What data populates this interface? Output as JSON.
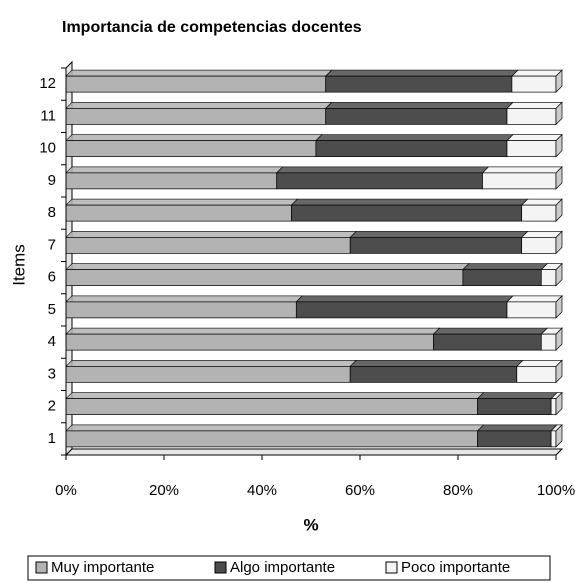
{
  "chart_data": {
    "type": "stacked-barh",
    "title": "Importancia de competencias docentes",
    "categories": [
      "1",
      "2",
      "3",
      "4",
      "5",
      "6",
      "7",
      "8",
      "9",
      "10",
      "11",
      "12"
    ],
    "series": [
      {
        "name": "Muy importante",
        "color": "#b3b3b3",
        "values": [
          84,
          84,
          58,
          75,
          47,
          81,
          58,
          46,
          43,
          51,
          53,
          53
        ]
      },
      {
        "name": "Algo importante",
        "color": "#4d4d4d",
        "values": [
          15,
          15,
          34,
          22,
          43,
          16,
          35,
          47,
          42,
          39,
          37,
          38
        ]
      },
      {
        "name": "Poco importante",
        "color": "#f4f4f4",
        "values": [
          1,
          1,
          8,
          3,
          10,
          3,
          7,
          7,
          15,
          10,
          10,
          9
        ]
      }
    ],
    "xlabel": "%",
    "ylabel": "Items",
    "xlim": [
      0,
      100
    ],
    "xticks": [
      {
        "value": 0,
        "label": "0%"
      },
      {
        "value": 20,
        "label": "20%"
      },
      {
        "value": 40,
        "label": "40%"
      },
      {
        "value": 60,
        "label": "60%"
      },
      {
        "value": 80,
        "label": "80%"
      },
      {
        "value": 100,
        "label": "100%"
      }
    ],
    "legend": "bottom"
  }
}
